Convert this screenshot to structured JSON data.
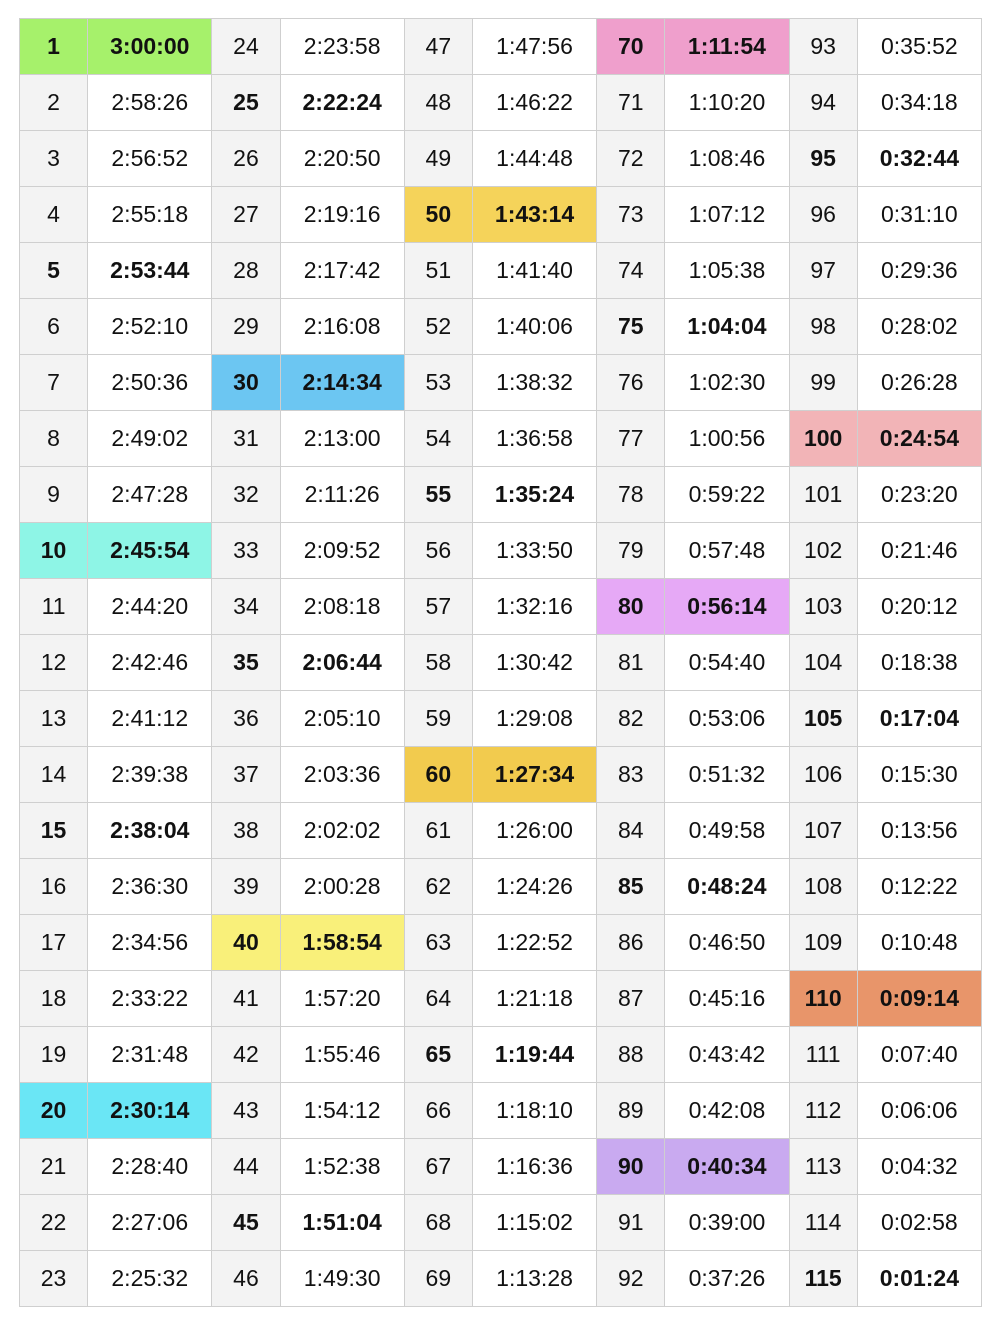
{
  "table": {
    "rows_per_column": 23,
    "highlight_colors": {
      "1": "#a6f16b",
      "10": "#8ef5e6",
      "20": "#6ae6f5",
      "30": "#6cc6f2",
      "40": "#f9f07a",
      "50": "#f5d35a",
      "60": "#f2cb4e",
      "70": "#ef9fcc",
      "80": "#e6a9f6",
      "90": "#c9aaf0",
      "100": "#f2b4b7",
      "110": "#e8956a"
    },
    "entries": [
      {
        "n": "1",
        "t": "3:00:00",
        "bold": true
      },
      {
        "n": "2",
        "t": "2:58:26",
        "bold": false
      },
      {
        "n": "3",
        "t": "2:56:52",
        "bold": false
      },
      {
        "n": "4",
        "t": "2:55:18",
        "bold": false
      },
      {
        "n": "5",
        "t": "2:53:44",
        "bold": true
      },
      {
        "n": "6",
        "t": "2:52:10",
        "bold": false
      },
      {
        "n": "7",
        "t": "2:50:36",
        "bold": false
      },
      {
        "n": "8",
        "t": "2:49:02",
        "bold": false
      },
      {
        "n": "9",
        "t": "2:47:28",
        "bold": false
      },
      {
        "n": "10",
        "t": "2:45:54",
        "bold": true
      },
      {
        "n": "11",
        "t": "2:44:20",
        "bold": false
      },
      {
        "n": "12",
        "t": "2:42:46",
        "bold": false
      },
      {
        "n": "13",
        "t": "2:41:12",
        "bold": false
      },
      {
        "n": "14",
        "t": "2:39:38",
        "bold": false
      },
      {
        "n": "15",
        "t": "2:38:04",
        "bold": true
      },
      {
        "n": "16",
        "t": "2:36:30",
        "bold": false
      },
      {
        "n": "17",
        "t": "2:34:56",
        "bold": false
      },
      {
        "n": "18",
        "t": "2:33:22",
        "bold": false
      },
      {
        "n": "19",
        "t": "2:31:48",
        "bold": false
      },
      {
        "n": "20",
        "t": "2:30:14",
        "bold": true
      },
      {
        "n": "21",
        "t": "2:28:40",
        "bold": false
      },
      {
        "n": "22",
        "t": "2:27:06",
        "bold": false
      },
      {
        "n": "23",
        "t": "2:25:32",
        "bold": false
      },
      {
        "n": "24",
        "t": "2:23:58",
        "bold": false
      },
      {
        "n": "25",
        "t": "2:22:24",
        "bold": true
      },
      {
        "n": "26",
        "t": "2:20:50",
        "bold": false
      },
      {
        "n": "27",
        "t": "2:19:16",
        "bold": false
      },
      {
        "n": "28",
        "t": "2:17:42",
        "bold": false
      },
      {
        "n": "29",
        "t": "2:16:08",
        "bold": false
      },
      {
        "n": "30",
        "t": "2:14:34",
        "bold": true
      },
      {
        "n": "31",
        "t": "2:13:00",
        "bold": false
      },
      {
        "n": "32",
        "t": "2:11:26",
        "bold": false
      },
      {
        "n": "33",
        "t": "2:09:52",
        "bold": false
      },
      {
        "n": "34",
        "t": "2:08:18",
        "bold": false
      },
      {
        "n": "35",
        "t": "2:06:44",
        "bold": true
      },
      {
        "n": "36",
        "t": "2:05:10",
        "bold": false
      },
      {
        "n": "37",
        "t": "2:03:36",
        "bold": false
      },
      {
        "n": "38",
        "t": "2:02:02",
        "bold": false
      },
      {
        "n": "39",
        "t": "2:00:28",
        "bold": false
      },
      {
        "n": "40",
        "t": "1:58:54",
        "bold": true
      },
      {
        "n": "41",
        "t": "1:57:20",
        "bold": false
      },
      {
        "n": "42",
        "t": "1:55:46",
        "bold": false
      },
      {
        "n": "43",
        "t": "1:54:12",
        "bold": false
      },
      {
        "n": "44",
        "t": "1:52:38",
        "bold": false
      },
      {
        "n": "45",
        "t": "1:51:04",
        "bold": true
      },
      {
        "n": "46",
        "t": "1:49:30",
        "bold": false
      },
      {
        "n": "47",
        "t": "1:47:56",
        "bold": false
      },
      {
        "n": "48",
        "t": "1:46:22",
        "bold": false
      },
      {
        "n": "49",
        "t": "1:44:48",
        "bold": false
      },
      {
        "n": "50",
        "t": "1:43:14",
        "bold": true
      },
      {
        "n": "51",
        "t": "1:41:40",
        "bold": false
      },
      {
        "n": "52",
        "t": "1:40:06",
        "bold": false
      },
      {
        "n": "53",
        "t": "1:38:32",
        "bold": false
      },
      {
        "n": "54",
        "t": "1:36:58",
        "bold": false
      },
      {
        "n": "55",
        "t": "1:35:24",
        "bold": true
      },
      {
        "n": "56",
        "t": "1:33:50",
        "bold": false
      },
      {
        "n": "57",
        "t": "1:32:16",
        "bold": false
      },
      {
        "n": "58",
        "t": "1:30:42",
        "bold": false
      },
      {
        "n": "59",
        "t": "1:29:08",
        "bold": false
      },
      {
        "n": "60",
        "t": "1:27:34",
        "bold": true
      },
      {
        "n": "61",
        "t": "1:26:00",
        "bold": false
      },
      {
        "n": "62",
        "t": "1:24:26",
        "bold": false
      },
      {
        "n": "63",
        "t": "1:22:52",
        "bold": false
      },
      {
        "n": "64",
        "t": "1:21:18",
        "bold": false
      },
      {
        "n": "65",
        "t": "1:19:44",
        "bold": true
      },
      {
        "n": "66",
        "t": "1:18:10",
        "bold": false
      },
      {
        "n": "67",
        "t": "1:16:36",
        "bold": false
      },
      {
        "n": "68",
        "t": "1:15:02",
        "bold": false
      },
      {
        "n": "69",
        "t": "1:13:28",
        "bold": false
      },
      {
        "n": "70",
        "t": "1:11:54",
        "bold": true
      },
      {
        "n": "71",
        "t": "1:10:20",
        "bold": false
      },
      {
        "n": "72",
        "t": "1:08:46",
        "bold": false
      },
      {
        "n": "73",
        "t": "1:07:12",
        "bold": false
      },
      {
        "n": "74",
        "t": "1:05:38",
        "bold": false
      },
      {
        "n": "75",
        "t": "1:04:04",
        "bold": true
      },
      {
        "n": "76",
        "t": "1:02:30",
        "bold": false
      },
      {
        "n": "77",
        "t": "1:00:56",
        "bold": false
      },
      {
        "n": "78",
        "t": "0:59:22",
        "bold": false
      },
      {
        "n": "79",
        "t": "0:57:48",
        "bold": false
      },
      {
        "n": "80",
        "t": "0:56:14",
        "bold": true
      },
      {
        "n": "81",
        "t": "0:54:40",
        "bold": false
      },
      {
        "n": "82",
        "t": "0:53:06",
        "bold": false
      },
      {
        "n": "83",
        "t": "0:51:32",
        "bold": false
      },
      {
        "n": "84",
        "t": "0:49:58",
        "bold": false
      },
      {
        "n": "85",
        "t": "0:48:24",
        "bold": true
      },
      {
        "n": "86",
        "t": "0:46:50",
        "bold": false
      },
      {
        "n": "87",
        "t": "0:45:16",
        "bold": false
      },
      {
        "n": "88",
        "t": "0:43:42",
        "bold": false
      },
      {
        "n": "89",
        "t": "0:42:08",
        "bold": false
      },
      {
        "n": "90",
        "t": "0:40:34",
        "bold": true
      },
      {
        "n": "91",
        "t": "0:39:00",
        "bold": false
      },
      {
        "n": "92",
        "t": "0:37:26",
        "bold": false
      },
      {
        "n": "93",
        "t": "0:35:52",
        "bold": false
      },
      {
        "n": "94",
        "t": "0:34:18",
        "bold": false
      },
      {
        "n": "95",
        "t": "0:32:44",
        "bold": true
      },
      {
        "n": "96",
        "t": "0:31:10",
        "bold": false
      },
      {
        "n": "97",
        "t": "0:29:36",
        "bold": false
      },
      {
        "n": "98",
        "t": "0:28:02",
        "bold": false
      },
      {
        "n": "99",
        "t": "0:26:28",
        "bold": false
      },
      {
        "n": "100",
        "t": "0:24:54",
        "bold": true
      },
      {
        "n": "101",
        "t": "0:23:20",
        "bold": false
      },
      {
        "n": "102",
        "t": "0:21:46",
        "bold": false
      },
      {
        "n": "103",
        "t": "0:20:12",
        "bold": false
      },
      {
        "n": "104",
        "t": "0:18:38",
        "bold": false
      },
      {
        "n": "105",
        "t": "0:17:04",
        "bold": true
      },
      {
        "n": "106",
        "t": "0:15:30",
        "bold": false
      },
      {
        "n": "107",
        "t": "0:13:56",
        "bold": false
      },
      {
        "n": "108",
        "t": "0:12:22",
        "bold": false
      },
      {
        "n": "109",
        "t": "0:10:48",
        "bold": false
      },
      {
        "n": "110",
        "t": "0:09:14",
        "bold": true
      },
      {
        "n": "111",
        "t": "0:07:40",
        "bold": false
      },
      {
        "n": "112",
        "t": "0:06:06",
        "bold": false
      },
      {
        "n": "113",
        "t": "0:04:32",
        "bold": false
      },
      {
        "n": "114",
        "t": "0:02:58",
        "bold": false
      },
      {
        "n": "115",
        "t": "0:01:24",
        "bold": true
      }
    ]
  }
}
